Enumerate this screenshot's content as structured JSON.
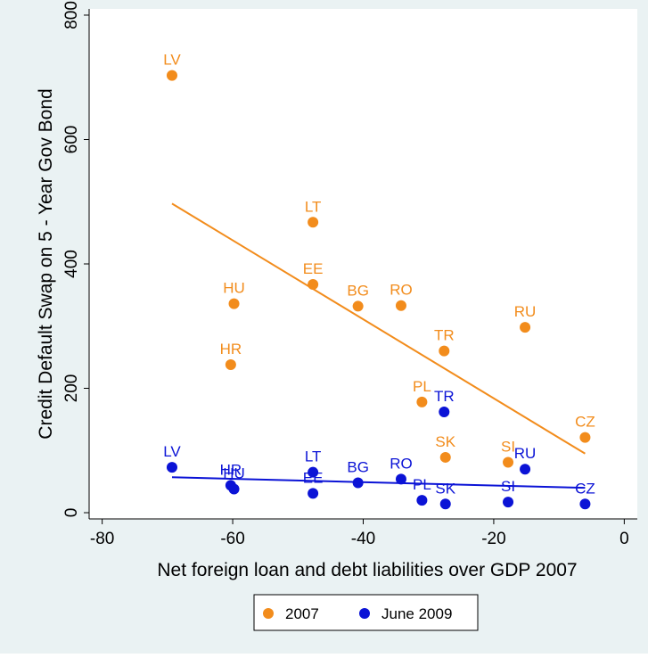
{
  "chart_data": {
    "type": "scatter",
    "xlabel": "Net foreign loan and debt liabilities over GDP 2007",
    "ylabel": "Credit Default Swap on 5 - Year Gov Bond",
    "xlim": [
      -82,
      2
    ],
    "ylim": [
      -10,
      810
    ],
    "xticks": [
      -80,
      -60,
      -40,
      -20,
      0
    ],
    "yticks": [
      0,
      200,
      400,
      600,
      800
    ],
    "xtick_labels": [
      "-80",
      "-60",
      "-40",
      "-20",
      "0"
    ],
    "ytick_labels": [
      "0",
      "200",
      "400",
      "600",
      "800"
    ],
    "grid": false,
    "legend_position": "bottom",
    "series": [
      {
        "name": "2007",
        "color": "#f28c1c",
        "points": [
          {
            "label": "LV",
            "x": -69.3,
            "y": 703
          },
          {
            "label": "LT",
            "x": -47.7,
            "y": 467
          },
          {
            "label": "HU",
            "x": -59.8,
            "y": 336
          },
          {
            "label": "EE",
            "x": -47.7,
            "y": 367
          },
          {
            "label": "BG",
            "x": -40.8,
            "y": 332
          },
          {
            "label": "RO",
            "x": -34.2,
            "y": 333
          },
          {
            "label": "HR",
            "x": -60.3,
            "y": 238
          },
          {
            "label": "TR",
            "x": -27.6,
            "y": 260
          },
          {
            "label": "RU",
            "x": -15.2,
            "y": 298
          },
          {
            "label": "PL",
            "x": -31.0,
            "y": 178
          },
          {
            "label": "SK",
            "x": -27.4,
            "y": 89
          },
          {
            "label": "SI",
            "x": -17.8,
            "y": 81
          },
          {
            "label": "CZ",
            "x": -6.0,
            "y": 121
          }
        ],
        "fit": {
          "x1": -69.3,
          "y1": 497,
          "x2": -6.0,
          "y2": 95
        }
      },
      {
        "name": "June 2009",
        "color": "#0b13d6",
        "points": [
          {
            "label": "LV",
            "x": -69.3,
            "y": 73
          },
          {
            "label": "HR",
            "x": -60.3,
            "y": 44
          },
          {
            "label": "HU",
            "x": -59.8,
            "y": 38
          },
          {
            "label": "LT",
            "x": -47.7,
            "y": 65
          },
          {
            "label": "EE",
            "x": -47.7,
            "y": 31
          },
          {
            "label": "BG",
            "x": -40.8,
            "y": 48
          },
          {
            "label": "RO",
            "x": -34.2,
            "y": 54
          },
          {
            "label": "PL",
            "x": -31.0,
            "y": 20
          },
          {
            "label": "TR",
            "x": -27.6,
            "y": 162
          },
          {
            "label": "SK",
            "x": -27.4,
            "y": 14
          },
          {
            "label": "SI",
            "x": -17.8,
            "y": 17
          },
          {
            "label": "RU",
            "x": -15.2,
            "y": 70
          },
          {
            "label": "CZ",
            "x": -6.0,
            "y": 14
          }
        ],
        "fit": {
          "x1": -69.3,
          "y1": 57,
          "x2": -6.0,
          "y2": 40
        }
      }
    ]
  }
}
